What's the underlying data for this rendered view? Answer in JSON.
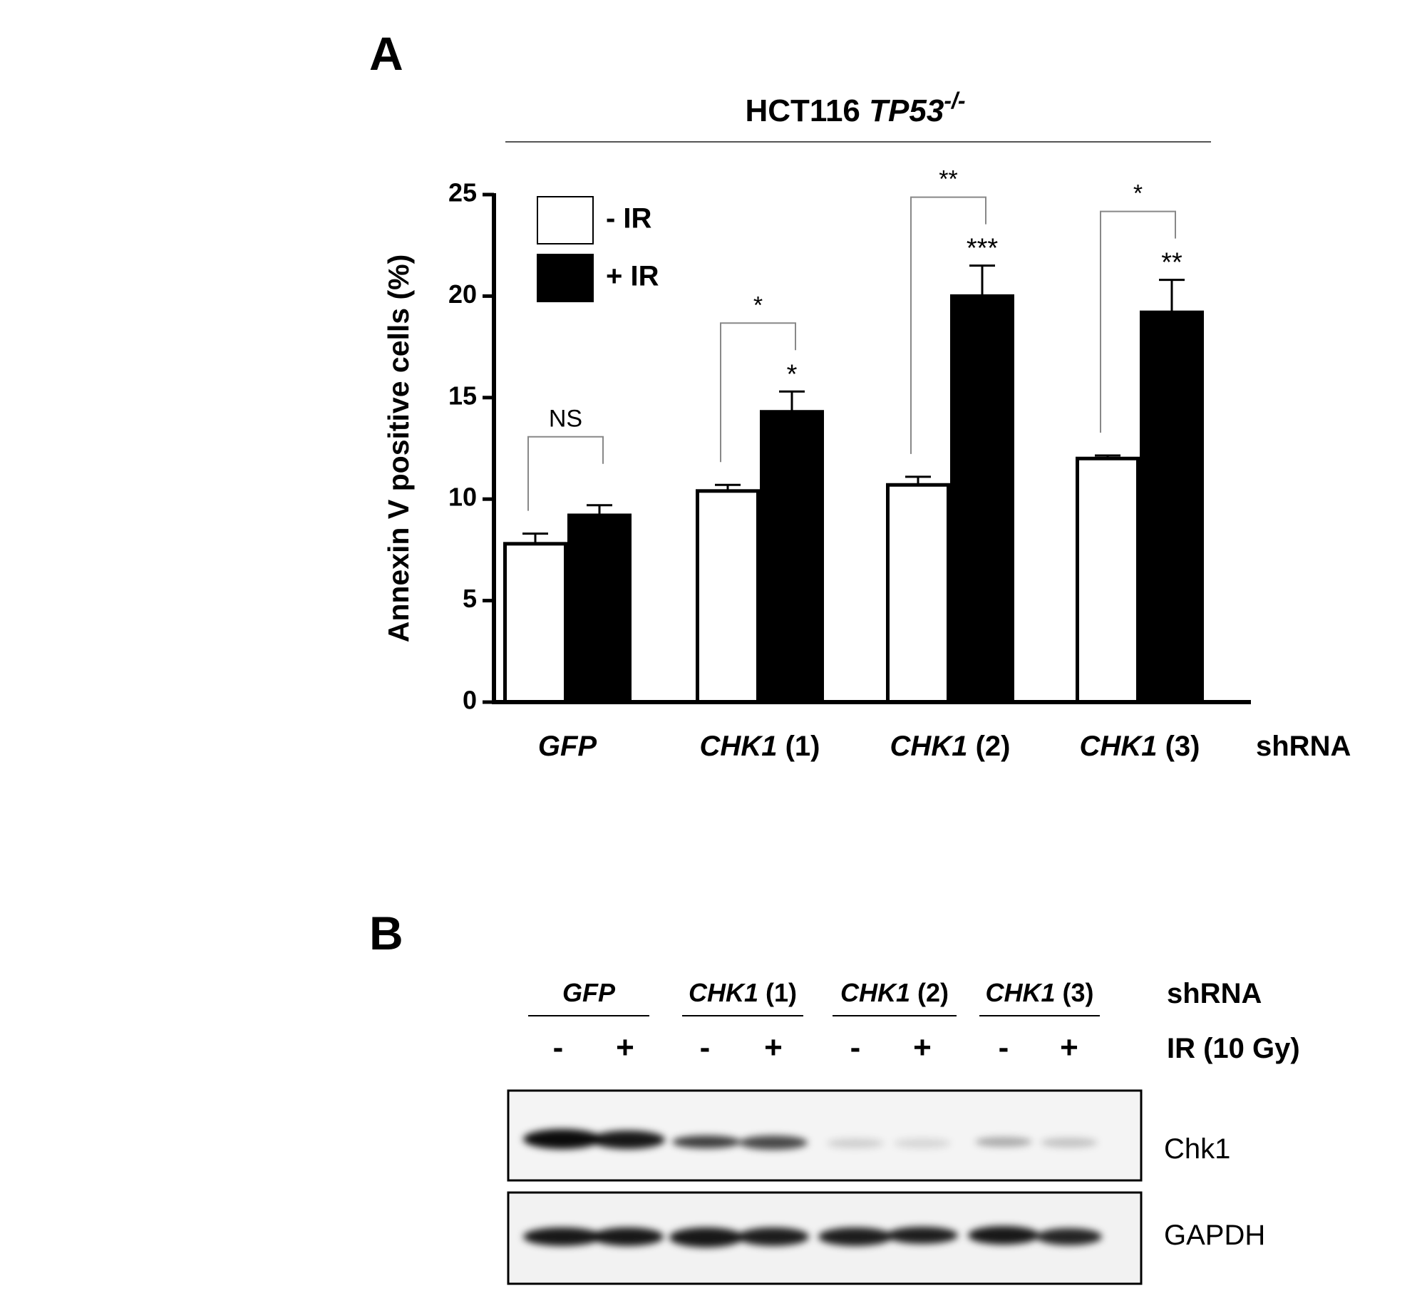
{
  "panel_labels": [
    "A",
    "B"
  ],
  "chart_data": {
    "type": "bar",
    "title": {
      "prefix": "HCT116",
      "gene": "TP53",
      "superscript": "-/-"
    },
    "y_label": "Annexin V positive cells (%)",
    "x_suffix": "shRNA",
    "categories": [
      "GFP",
      "CHK1 (1)",
      "CHK1 (2)",
      "CHK1 (3)"
    ],
    "series": [
      {
        "name": "- IR",
        "color": "#ffffff",
        "values": [
          7.8,
          10.4,
          10.7,
          12.0
        ],
        "errors": [
          0.5,
          0.3,
          0.4,
          0.15
        ],
        "stars": [
          null,
          null,
          null,
          null
        ]
      },
      {
        "name": "+ IR",
        "color": "#000000",
        "values": [
          9.2,
          14.3,
          20.0,
          19.2
        ],
        "errors": [
          0.5,
          1.0,
          1.5,
          1.6
        ],
        "stars": [
          null,
          "*",
          "***",
          "**"
        ]
      }
    ],
    "bracket_labels": [
      "NS",
      "*",
      "**",
      "*"
    ],
    "ylim": [
      0,
      25
    ],
    "yticks": [
      0,
      5,
      10,
      15,
      20,
      25
    ],
    "legend": "upper left"
  },
  "blot": {
    "groups": [
      "GFP",
      "CHK1 (1)",
      "CHK1 (2)",
      "CHK1 (3)"
    ],
    "group_suffix": "shRNA",
    "lanes": [
      "-",
      "+",
      "-",
      "+",
      "-",
      "+",
      "-",
      "+"
    ],
    "treatment": "IR (10 Gy)",
    "bands": [
      "Chk1",
      "GAPDH"
    ]
  }
}
